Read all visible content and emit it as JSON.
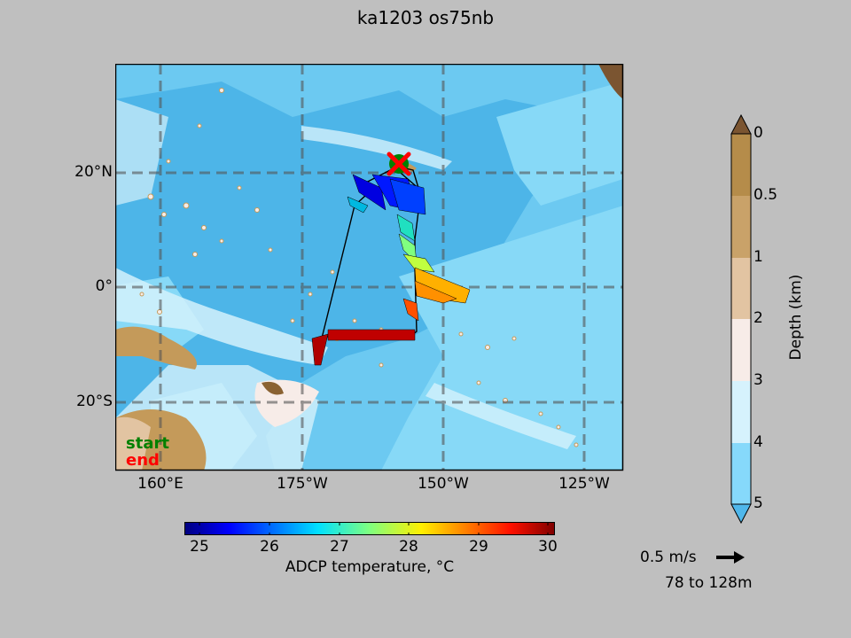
{
  "title": "ka1203 os75nb",
  "map": {
    "lat_labels": [
      "20°N",
      "0°",
      "20°S"
    ],
    "lon_labels": [
      "160°E",
      "175°W",
      "150°W",
      "125°W"
    ],
    "legend": {
      "start": "start",
      "end": "end"
    },
    "markers": [
      {
        "name": "start",
        "symbol": "circle",
        "color": "#008000",
        "lon": -158,
        "lat": 21.3
      },
      {
        "name": "end",
        "symbol": "x",
        "color": "#ff0000",
        "lon": -158,
        "lat": 21.3
      }
    ],
    "colors": {
      "deep": "#87d9f7",
      "mid": "#4db5e8",
      "shallow": "#d4f1fb",
      "land": "#c49a5a",
      "gridline": "#555555"
    }
  },
  "depth_colorbar": {
    "label": "Depth (km)",
    "ticks": [
      "0",
      "0.5",
      "1",
      "2",
      "3",
      "4",
      "5"
    ],
    "colors": [
      "#b58c4a",
      "#c9a269",
      "#e2c4a2",
      "#f7ece8",
      "#d6f2fd",
      "#86d9fb"
    ],
    "over_color": "#7b5531",
    "under_color": "#4fb7eb"
  },
  "temp_colorbar": {
    "label": "ADCP temperature, °C",
    "ticks": [
      "25",
      "26",
      "27",
      "28",
      "29",
      "30"
    ],
    "range": [
      24.8,
      30.1
    ]
  },
  "scale": {
    "text": "0.5 m/s",
    "depth_range": "78 to 128m"
  }
}
